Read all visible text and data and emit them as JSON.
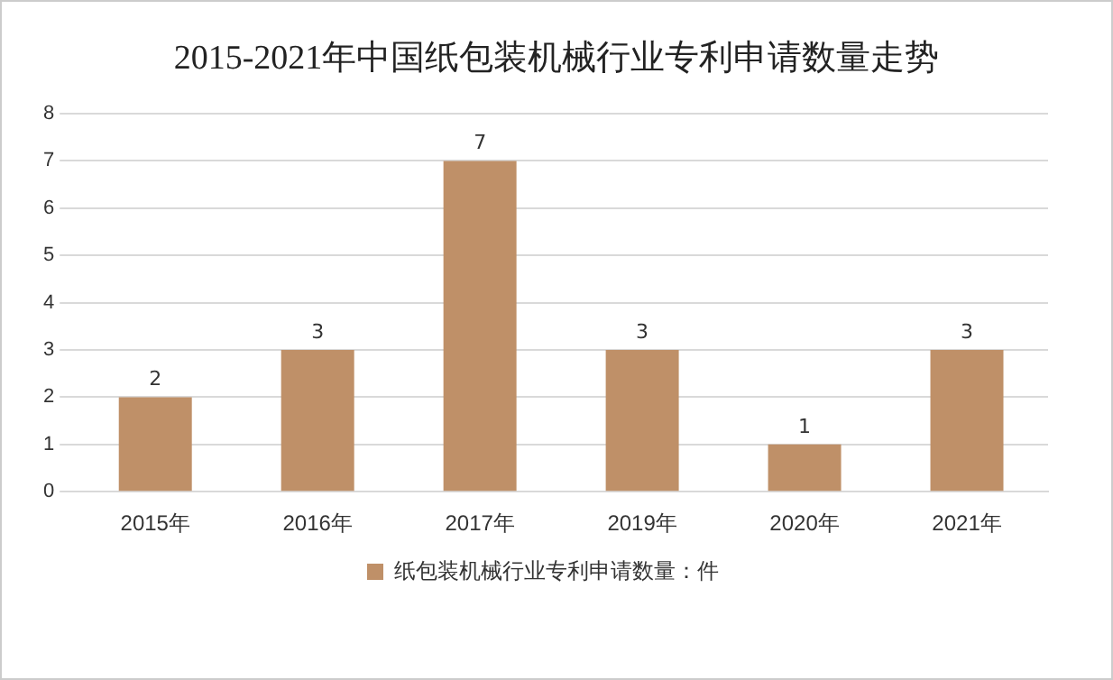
{
  "chart_data": {
    "type": "bar",
    "title": "2015-2021年中国纸包装机械行业专利申请数量走势",
    "categories": [
      "2015年",
      "2016年",
      "2017年",
      "2019年",
      "2020年",
      "2021年"
    ],
    "series": [
      {
        "name": "纸包装机械行业专利申请数量：件",
        "color": "#bf9068",
        "values": [
          2,
          3,
          7,
          3,
          1,
          3
        ]
      }
    ],
    "ylim": [
      0,
      8
    ],
    "yticks": [
      0,
      1,
      2,
      3,
      4,
      5,
      6,
      7,
      8
    ],
    "grid": "y",
    "legend": "bottom",
    "data_labels": true
  }
}
